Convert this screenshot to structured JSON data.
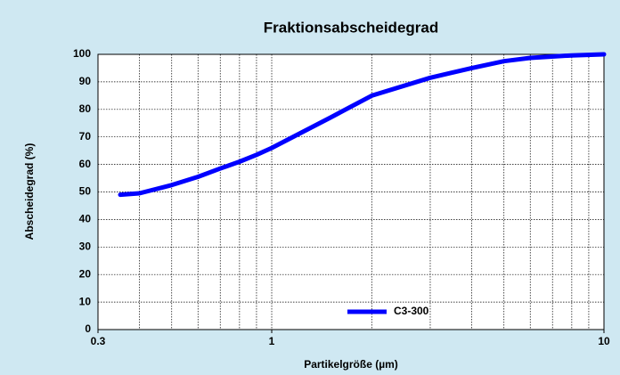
{
  "chart_data": {
    "type": "line",
    "title": "Fraktionsabscheidegrad",
    "x_label": "Partikelgröße (µm)",
    "y_label": "Abscheidegrad (%)",
    "x": [
      0.35,
      0.4,
      0.5,
      0.6,
      0.7,
      0.8,
      0.9,
      1,
      1.5,
      2,
      3,
      4,
      5,
      6,
      8,
      10
    ],
    "series": [
      {
        "name": "C3-300",
        "color": "#0000ff",
        "values": [
          49,
          49.5,
          52.5,
          55.5,
          58.5,
          61,
          63.5,
          66,
          77,
          85,
          91.5,
          95,
          97.5,
          98.7,
          99.6,
          100
        ]
      }
    ],
    "xlim": [
      0.3,
      10
    ],
    "xticks": [
      0.3,
      1,
      10
    ],
    "xlog": true,
    "ylim": [
      0,
      100
    ],
    "yticks": [
      0,
      10,
      20,
      30,
      40,
      50,
      60,
      70,
      80,
      90,
      100
    ],
    "grid": true,
    "legend": "bottom"
  }
}
